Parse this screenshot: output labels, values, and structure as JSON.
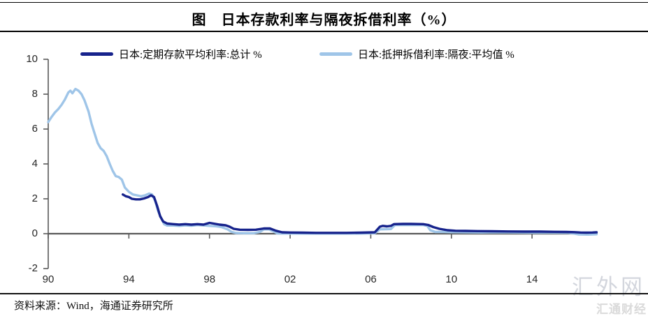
{
  "title": "图　日本存款利率与隔夜拆借利率（%）",
  "source": "资料来源：Wind，海通证券研究所",
  "watermark": "汇外网",
  "watermark_logo": "汇通财经",
  "colors": {
    "deposit_line": "#17238C",
    "call_line": "#9FC5E8",
    "axis": "#595959",
    "title_text": "#000000",
    "watermark_gray": "#C9CDD5"
  },
  "chart_data": {
    "type": "line",
    "title": "图　日本存款利率与隔夜拆借利率（%）",
    "xlabel": "",
    "ylabel": "",
    "ylim": [
      -2,
      10
    ],
    "xlim": [
      1990,
      2017.3
    ],
    "grid": false,
    "legend_position": "top",
    "y_ticks": [
      10,
      8,
      6,
      4,
      2,
      0,
      -2
    ],
    "x_ticks": [
      {
        "label": "90",
        "x": 1990
      },
      {
        "label": "94",
        "x": 1994
      },
      {
        "label": "98",
        "x": 1998
      },
      {
        "label": "02",
        "x": 2002
      },
      {
        "label": "06",
        "x": 2006
      },
      {
        "label": "10",
        "x": 2010
      },
      {
        "label": "14",
        "x": 2014
      }
    ],
    "series": [
      {
        "key": "deposit-rate",
        "name": "日本:定期存款平均利率:总计 %",
        "color": "#17238C",
        "points": [
          [
            1993.7,
            2.25
          ],
          [
            1993.85,
            2.15
          ],
          [
            1994.0,
            2.1
          ],
          [
            1994.15,
            2.0
          ],
          [
            1994.35,
            1.97
          ],
          [
            1994.55,
            1.97
          ],
          [
            1994.75,
            2.02
          ],
          [
            1994.95,
            2.1
          ],
          [
            1995.1,
            2.2
          ],
          [
            1995.25,
            2.1
          ],
          [
            1995.4,
            1.6
          ],
          [
            1995.55,
            1.0
          ],
          [
            1995.7,
            0.7
          ],
          [
            1995.9,
            0.58
          ],
          [
            1996.2,
            0.55
          ],
          [
            1996.5,
            0.52
          ],
          [
            1996.8,
            0.55
          ],
          [
            1997.1,
            0.52
          ],
          [
            1997.4,
            0.55
          ],
          [
            1997.7,
            0.52
          ],
          [
            1998.0,
            0.62
          ],
          [
            1998.2,
            0.58
          ],
          [
            1998.5,
            0.52
          ],
          [
            1998.8,
            0.48
          ],
          [
            1999.0,
            0.4
          ],
          [
            1999.2,
            0.28
          ],
          [
            1999.5,
            0.23
          ],
          [
            1999.9,
            0.22
          ],
          [
            2000.3,
            0.23
          ],
          [
            2000.7,
            0.3
          ],
          [
            2001.0,
            0.3
          ],
          [
            2001.3,
            0.17
          ],
          [
            2001.6,
            0.08
          ],
          [
            2002.0,
            0.07
          ],
          [
            2002.6,
            0.06
          ],
          [
            2003.3,
            0.05
          ],
          [
            2004.0,
            0.05
          ],
          [
            2004.8,
            0.05
          ],
          [
            2005.5,
            0.06
          ],
          [
            2006.2,
            0.08
          ],
          [
            2006.45,
            0.4
          ],
          [
            2006.6,
            0.45
          ],
          [
            2006.8,
            0.42
          ],
          [
            2007.0,
            0.45
          ],
          [
            2007.15,
            0.55
          ],
          [
            2007.6,
            0.56
          ],
          [
            2008.0,
            0.56
          ],
          [
            2008.6,
            0.55
          ],
          [
            2008.85,
            0.5
          ],
          [
            2009.1,
            0.38
          ],
          [
            2009.4,
            0.28
          ],
          [
            2009.8,
            0.2
          ],
          [
            2010.2,
            0.17
          ],
          [
            2010.7,
            0.16
          ],
          [
            2011.3,
            0.15
          ],
          [
            2012.0,
            0.14
          ],
          [
            2012.8,
            0.13
          ],
          [
            2013.6,
            0.12
          ],
          [
            2014.4,
            0.12
          ],
          [
            2015.1,
            0.11
          ],
          [
            2015.7,
            0.1
          ],
          [
            2016.1,
            0.09
          ],
          [
            2016.4,
            0.07
          ],
          [
            2016.7,
            0.06
          ],
          [
            2017.0,
            0.07
          ],
          [
            2017.2,
            0.08
          ]
        ]
      },
      {
        "key": "call-rate",
        "name": "日本:抵押拆借利率:隔夜:平均值 %",
        "color": "#9FC5E8",
        "points": [
          [
            1990.0,
            6.4
          ],
          [
            1990.17,
            6.7
          ],
          [
            1990.33,
            6.95
          ],
          [
            1990.5,
            7.15
          ],
          [
            1990.67,
            7.4
          ],
          [
            1990.83,
            7.7
          ],
          [
            1991.0,
            8.1
          ],
          [
            1991.1,
            8.2
          ],
          [
            1991.2,
            8.05
          ],
          [
            1991.35,
            8.3
          ],
          [
            1991.5,
            8.2
          ],
          [
            1991.65,
            8.0
          ],
          [
            1991.8,
            7.65
          ],
          [
            1992.0,
            7.0
          ],
          [
            1992.15,
            6.3
          ],
          [
            1992.3,
            5.75
          ],
          [
            1992.45,
            5.2
          ],
          [
            1992.6,
            4.9
          ],
          [
            1992.75,
            4.75
          ],
          [
            1992.9,
            4.45
          ],
          [
            1993.05,
            4.0
          ],
          [
            1993.2,
            3.6
          ],
          [
            1993.35,
            3.3
          ],
          [
            1993.5,
            3.25
          ],
          [
            1993.65,
            3.1
          ],
          [
            1993.8,
            2.65
          ],
          [
            1994.0,
            2.4
          ],
          [
            1994.2,
            2.25
          ],
          [
            1994.4,
            2.2
          ],
          [
            1994.6,
            2.15
          ],
          [
            1994.8,
            2.2
          ],
          [
            1995.0,
            2.3
          ],
          [
            1995.15,
            2.25
          ],
          [
            1995.3,
            1.9
          ],
          [
            1995.45,
            1.3
          ],
          [
            1995.6,
            0.9
          ],
          [
            1995.75,
            0.55
          ],
          [
            1995.9,
            0.47
          ],
          [
            1996.2,
            0.47
          ],
          [
            1996.5,
            0.45
          ],
          [
            1996.8,
            0.48
          ],
          [
            1997.1,
            0.46
          ],
          [
            1997.4,
            0.5
          ],
          [
            1997.7,
            0.48
          ],
          [
            1998.0,
            0.45
          ],
          [
            1998.3,
            0.43
          ],
          [
            1998.6,
            0.38
          ],
          [
            1998.9,
            0.25
          ],
          [
            1999.1,
            0.1
          ],
          [
            1999.3,
            0.04
          ],
          [
            1999.7,
            0.03
          ],
          [
            2000.2,
            0.03
          ],
          [
            2000.5,
            0.1
          ],
          [
            2000.7,
            0.25
          ],
          [
            2000.95,
            0.25
          ],
          [
            2001.15,
            0.15
          ],
          [
            2001.35,
            0.02
          ],
          [
            2001.7,
            0.01
          ],
          [
            2002.5,
            0.01
          ],
          [
            2003.5,
            0.01
          ],
          [
            2004.5,
            0.01
          ],
          [
            2005.5,
            0.01
          ],
          [
            2006.2,
            0.03
          ],
          [
            2006.45,
            0.25
          ],
          [
            2007.0,
            0.27
          ],
          [
            2007.2,
            0.5
          ],
          [
            2007.8,
            0.5
          ],
          [
            2008.6,
            0.5
          ],
          [
            2008.8,
            0.45
          ],
          [
            2008.95,
            0.2
          ],
          [
            2009.2,
            0.1
          ],
          [
            2009.6,
            0.1
          ],
          [
            2010.0,
            0.09
          ],
          [
            2010.7,
            0.08
          ],
          [
            2011.5,
            0.07
          ],
          [
            2012.3,
            0.08
          ],
          [
            2013.2,
            0.07
          ],
          [
            2014.0,
            0.06
          ],
          [
            2015.0,
            0.06
          ],
          [
            2015.8,
            0.05
          ],
          [
            2016.1,
            0.0
          ],
          [
            2016.3,
            -0.04
          ],
          [
            2016.8,
            -0.05
          ],
          [
            2017.2,
            -0.03
          ]
        ]
      }
    ]
  }
}
